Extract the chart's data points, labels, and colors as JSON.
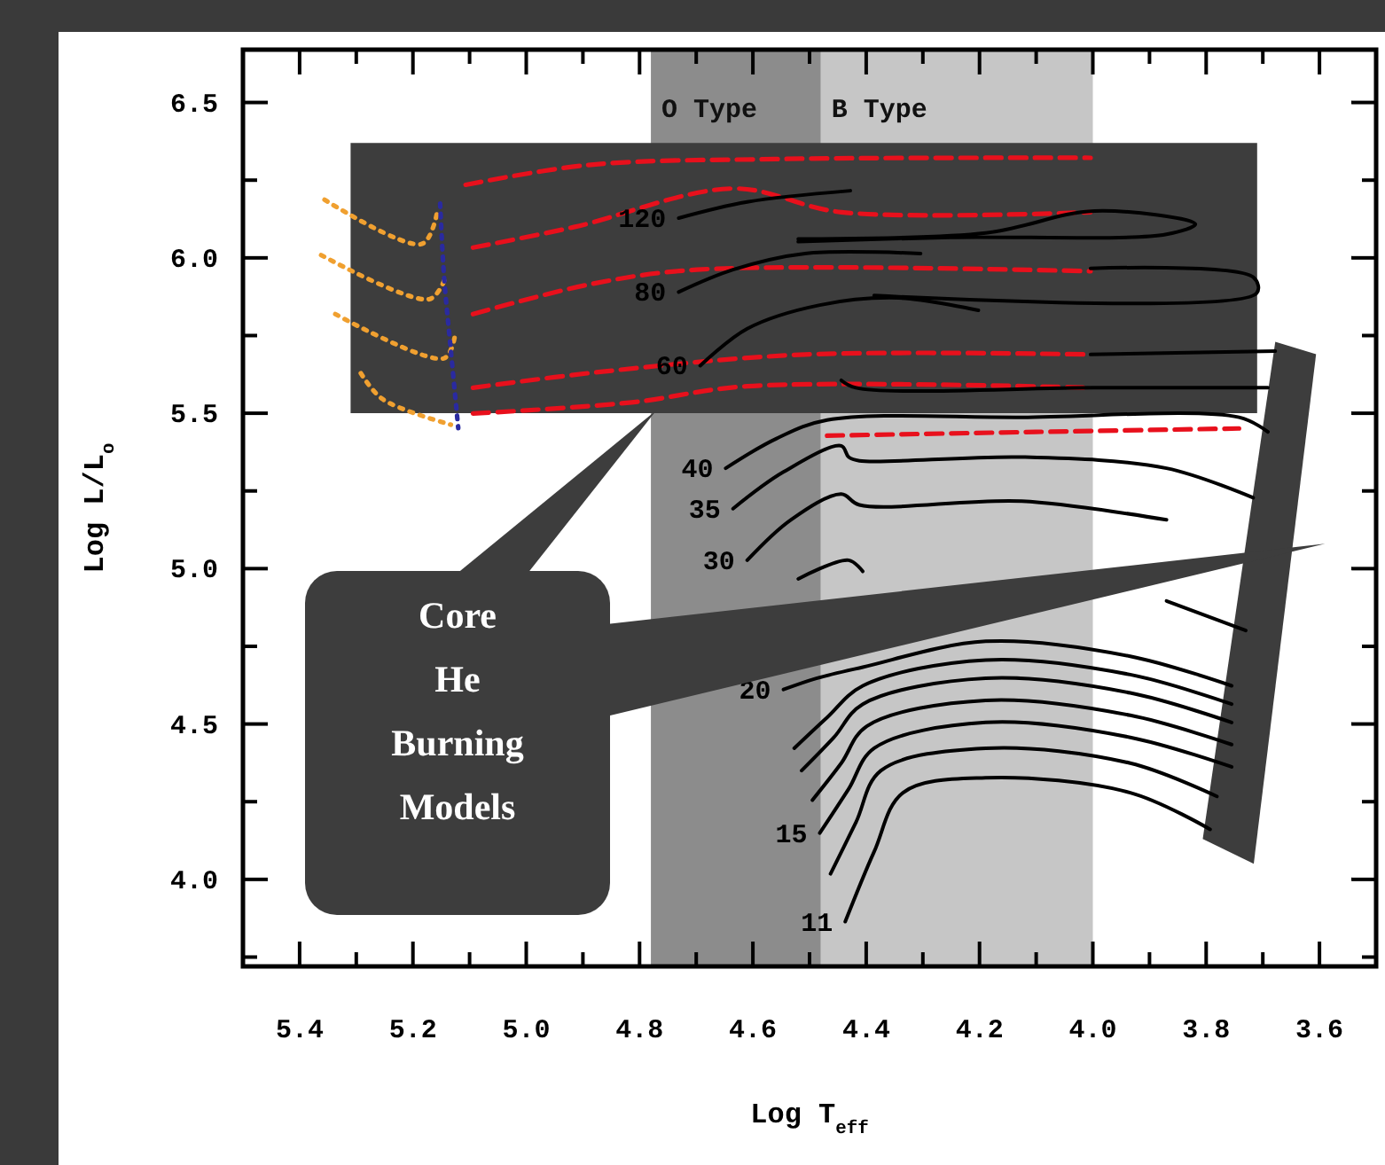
{
  "chart_data": {
    "type": "line",
    "xlabel": "Log T$_{eff}$",
    "ylabel": "Log L/L$_{o}$",
    "xlim": [
      5.5,
      3.5
    ],
    "ylim": [
      3.72,
      6.67
    ],
    "xticks": [
      {
        "value": 5.5,
        "label": null
      },
      5.4,
      {
        "value": 5.3,
        "label": null
      },
      5.2,
      {
        "value": 5.1,
        "label": null
      },
      {
        "value": 5.0,
        "label": "5.0"
      },
      {
        "value": 4.9,
        "label": null
      },
      4.8,
      {
        "value": 4.7,
        "label": null
      },
      4.6,
      {
        "value": 4.5,
        "label": null
      },
      4.4,
      {
        "value": 4.3,
        "label": null
      },
      4.2,
      {
        "value": 4.1,
        "label": null
      },
      {
        "value": 4.0,
        "label": "4.0"
      },
      {
        "value": 3.9,
        "label": null
      },
      3.8,
      {
        "value": 3.7,
        "label": null
      },
      3.6,
      {
        "value": 3.5,
        "label": null
      }
    ],
    "yticks": [
      {
        "value": 3.75,
        "label": null
      },
      {
        "value": 4.0,
        "label": "4.0"
      },
      {
        "value": 4.25,
        "label": null
      },
      4.5,
      {
        "value": 4.75,
        "label": null
      },
      {
        "value": 5.0,
        "label": "5.0"
      },
      {
        "value": 5.25,
        "label": null
      },
      5.5,
      {
        "value": 5.75,
        "label": null
      },
      {
        "value": 6.0,
        "label": "6.0"
      },
      {
        "value": 6.25,
        "label": null
      },
      6.5
    ],
    "grid": false,
    "legend": false,
    "bands": [
      {
        "axis": "x",
        "from": 4.78,
        "to": 4.48,
        "label": "O Type",
        "color": "#8c8c8c"
      },
      {
        "axis": "x",
        "from": 4.48,
        "to": 4.0,
        "label": "B Type",
        "color": "#c6c6c6"
      }
    ],
    "annotations": [
      "Core He Burning Models"
    ],
    "series": [
      {
        "type": "line",
        "color": "#e8101c",
        "line_style": "dashed",
        "x": [
          5.107,
          4.89,
          4.559,
          4.004
        ],
        "values": [
          6.235,
          6.299,
          6.318,
          6.322
        ]
      },
      {
        "type": "line",
        "color": "#e8101c",
        "line_style": "dashed",
        "x": [
          5.094,
          4.916,
          4.635,
          4.444,
          4.004
        ],
        "values": [
          6.033,
          6.099,
          6.223,
          6.147,
          6.147
        ]
      },
      {
        "type": "line",
        "color": "#e8101c",
        "line_style": "dashed",
        "x": [
          5.094,
          4.89,
          4.699,
          4.004
        ],
        "values": [
          5.819,
          5.914,
          5.962,
          5.957
        ]
      },
      {
        "type": "line",
        "color": "#e8101c",
        "line_style": "dashed",
        "x": [
          5.094,
          4.865,
          4.508,
          4.004
        ],
        "values": [
          5.582,
          5.634,
          5.689,
          5.689
        ]
      },
      {
        "type": "line",
        "color": "#e8101c",
        "line_style": "dashed",
        "x": [
          5.094,
          4.814,
          4.61,
          4.004
        ],
        "values": [
          5.499,
          5.535,
          5.587,
          5.582
        ]
      },
      {
        "type": "line",
        "color": "#e8101c",
        "line_style": "dashed",
        "x": [
          4.469,
          4.1,
          3.742
        ],
        "values": [
          5.428,
          5.44,
          5.451
        ]
      },
      {
        "type": "line",
        "color": "#f0a030",
        "line_style": "dotted",
        "x": [
          5.356,
          5.184,
          5.158
        ],
        "values": [
          6.187,
          6.045,
          6.14
        ]
      },
      {
        "type": "line",
        "color": "#f0a030",
        "line_style": "dotted",
        "x": [
          5.362,
          5.171,
          5.145
        ],
        "values": [
          6.009,
          5.867,
          5.926
        ]
      },
      {
        "type": "line",
        "color": "#f0a030",
        "line_style": "dotted",
        "x": [
          5.337,
          5.145,
          5.126
        ],
        "values": [
          5.819,
          5.677,
          5.748
        ]
      },
      {
        "type": "line",
        "color": "#f0a030",
        "line_style": "dotted",
        "x": [
          5.292,
          5.254,
          5.133
        ],
        "values": [
          5.629,
          5.546,
          5.463
        ]
      },
      {
        "type": "line",
        "color": "#2a2aa0",
        "line_style": "dotted",
        "x": [
          5.152,
          5.145,
          5.133,
          5.12
        ],
        "values": [
          6.175,
          5.938,
          5.701,
          5.452
        ]
      },
      {
        "type": "line",
        "name": "120",
        "color": "#000000",
        "line_style": "solid",
        "x": [
          4.731,
          4.61,
          4.428
        ],
        "values": [
          6.128,
          6.18,
          6.216
        ]
      },
      {
        "type": "line",
        "color": "#000000",
        "line_style": "solid",
        "x": [
          4.52,
          4.189,
          3.997,
          3.819,
          3.87,
          4.252,
          4.52
        ],
        "values": [
          6.061,
          6.08,
          6.151,
          6.109,
          6.076,
          6.066,
          6.052
        ]
      },
      {
        "type": "line",
        "name": "80",
        "color": "#000000",
        "line_style": "solid",
        "x": [
          4.731,
          4.635,
          4.508,
          4.304
        ],
        "values": [
          5.89,
          5.962,
          6.014,
          6.014
        ]
      },
      {
        "type": "line",
        "color": "#000000",
        "line_style": "solid",
        "x": [
          4.004,
          3.717,
          3.711,
          4.386
        ],
        "values": [
          5.966,
          5.938,
          5.886,
          5.879
        ]
      },
      {
        "type": "line",
        "name": "60",
        "color": "#000000",
        "line_style": "solid",
        "x": [
          4.693,
          4.61,
          4.482,
          4.342,
          4.202
        ],
        "values": [
          5.653,
          5.772,
          5.848,
          5.871,
          5.831
        ]
      },
      {
        "type": "line",
        "color": "#000000",
        "line_style": "solid",
        "x": [
          4.004,
          3.678
        ],
        "values": [
          5.689,
          5.7
        ]
      },
      {
        "type": "line",
        "color": "#000000",
        "line_style": "solid",
        "x": [
          4.444,
          4.418,
          3.997,
          3.691
        ],
        "values": [
          5.606,
          5.582,
          5.582,
          5.582
        ]
      },
      {
        "type": "line",
        "name": "40",
        "color": "#000000",
        "line_style": "solid",
        "x": [
          4.648,
          4.559,
          4.469,
          4.125,
          3.742,
          3.691
        ],
        "values": [
          5.323,
          5.418,
          5.478,
          5.487,
          5.487,
          5.44
        ]
      },
      {
        "type": "line",
        "name": "35",
        "color": "#000000",
        "line_style": "solid",
        "x": [
          4.635,
          4.546,
          4.444,
          4.431,
          4.412,
          4.125,
          3.87,
          3.717
        ],
        "values": [
          5.193,
          5.311,
          5.395,
          5.359,
          5.347,
          5.359,
          5.323,
          5.228
        ]
      },
      {
        "type": "line",
        "name": "30",
        "color": "#000000",
        "line_style": "solid",
        "x": [
          4.61,
          4.533,
          4.444,
          4.412,
          4.125,
          3.87
        ],
        "values": [
          5.027,
          5.157,
          5.24,
          5.205,
          5.217,
          5.157
        ]
      },
      {
        "type": "line",
        "color": "#000000",
        "line_style": "solid",
        "x": [
          4.52,
          4.431,
          4.406
        ],
        "values": [
          4.967,
          5.027,
          4.991
        ]
      },
      {
        "type": "line",
        "color": "#000000",
        "line_style": "solid",
        "x": [
          3.87,
          3.73
        ],
        "values": [
          4.896,
          4.801
        ]
      },
      {
        "type": "line",
        "name": "20",
        "color": "#000000",
        "line_style": "solid",
        "x": [
          4.546,
          4.488,
          4.406,
          4.189,
          3.934,
          3.755
        ],
        "values": [
          4.611,
          4.647,
          4.683,
          4.766,
          4.718,
          4.623
        ]
      },
      {
        "type": "line",
        "color": "#000000",
        "line_style": "solid",
        "x": [
          4.527,
          4.469,
          4.406,
          4.189,
          3.934,
          3.755
        ],
        "values": [
          4.422,
          4.521,
          4.623,
          4.706,
          4.659,
          4.564
        ]
      },
      {
        "type": "line",
        "color": "#000000",
        "line_style": "solid",
        "x": [
          4.514,
          4.457,
          4.406,
          4.189,
          3.934,
          3.755
        ],
        "values": [
          4.35,
          4.457,
          4.564,
          4.647,
          4.6,
          4.505
        ]
      },
      {
        "type": "line",
        "color": "#000000",
        "line_style": "solid",
        "x": [
          4.495,
          4.444,
          4.399,
          4.189,
          3.934,
          3.755
        ],
        "values": [
          4.255,
          4.374,
          4.493,
          4.576,
          4.528,
          4.434
        ]
      },
      {
        "type": "line",
        "name": "15",
        "color": "#000000",
        "line_style": "solid",
        "x": [
          4.482,
          4.431,
          4.386,
          4.189,
          3.934,
          3.755
        ],
        "values": [
          4.149,
          4.291,
          4.422,
          4.505,
          4.457,
          4.362
        ]
      },
      {
        "type": "line",
        "color": "#000000",
        "line_style": "solid",
        "x": [
          4.463,
          4.418,
          4.374,
          4.189,
          3.934,
          3.781
        ],
        "values": [
          4.018,
          4.184,
          4.35,
          4.422,
          4.374,
          4.267
        ]
      },
      {
        "type": "line",
        "name": "11",
        "color": "#000000",
        "line_style": "solid",
        "x": [
          4.437,
          4.386,
          4.335,
          4.189,
          3.934,
          3.793
        ],
        "values": [
          3.864,
          4.089,
          4.279,
          4.327,
          4.279,
          4.161
        ]
      }
    ]
  }
}
